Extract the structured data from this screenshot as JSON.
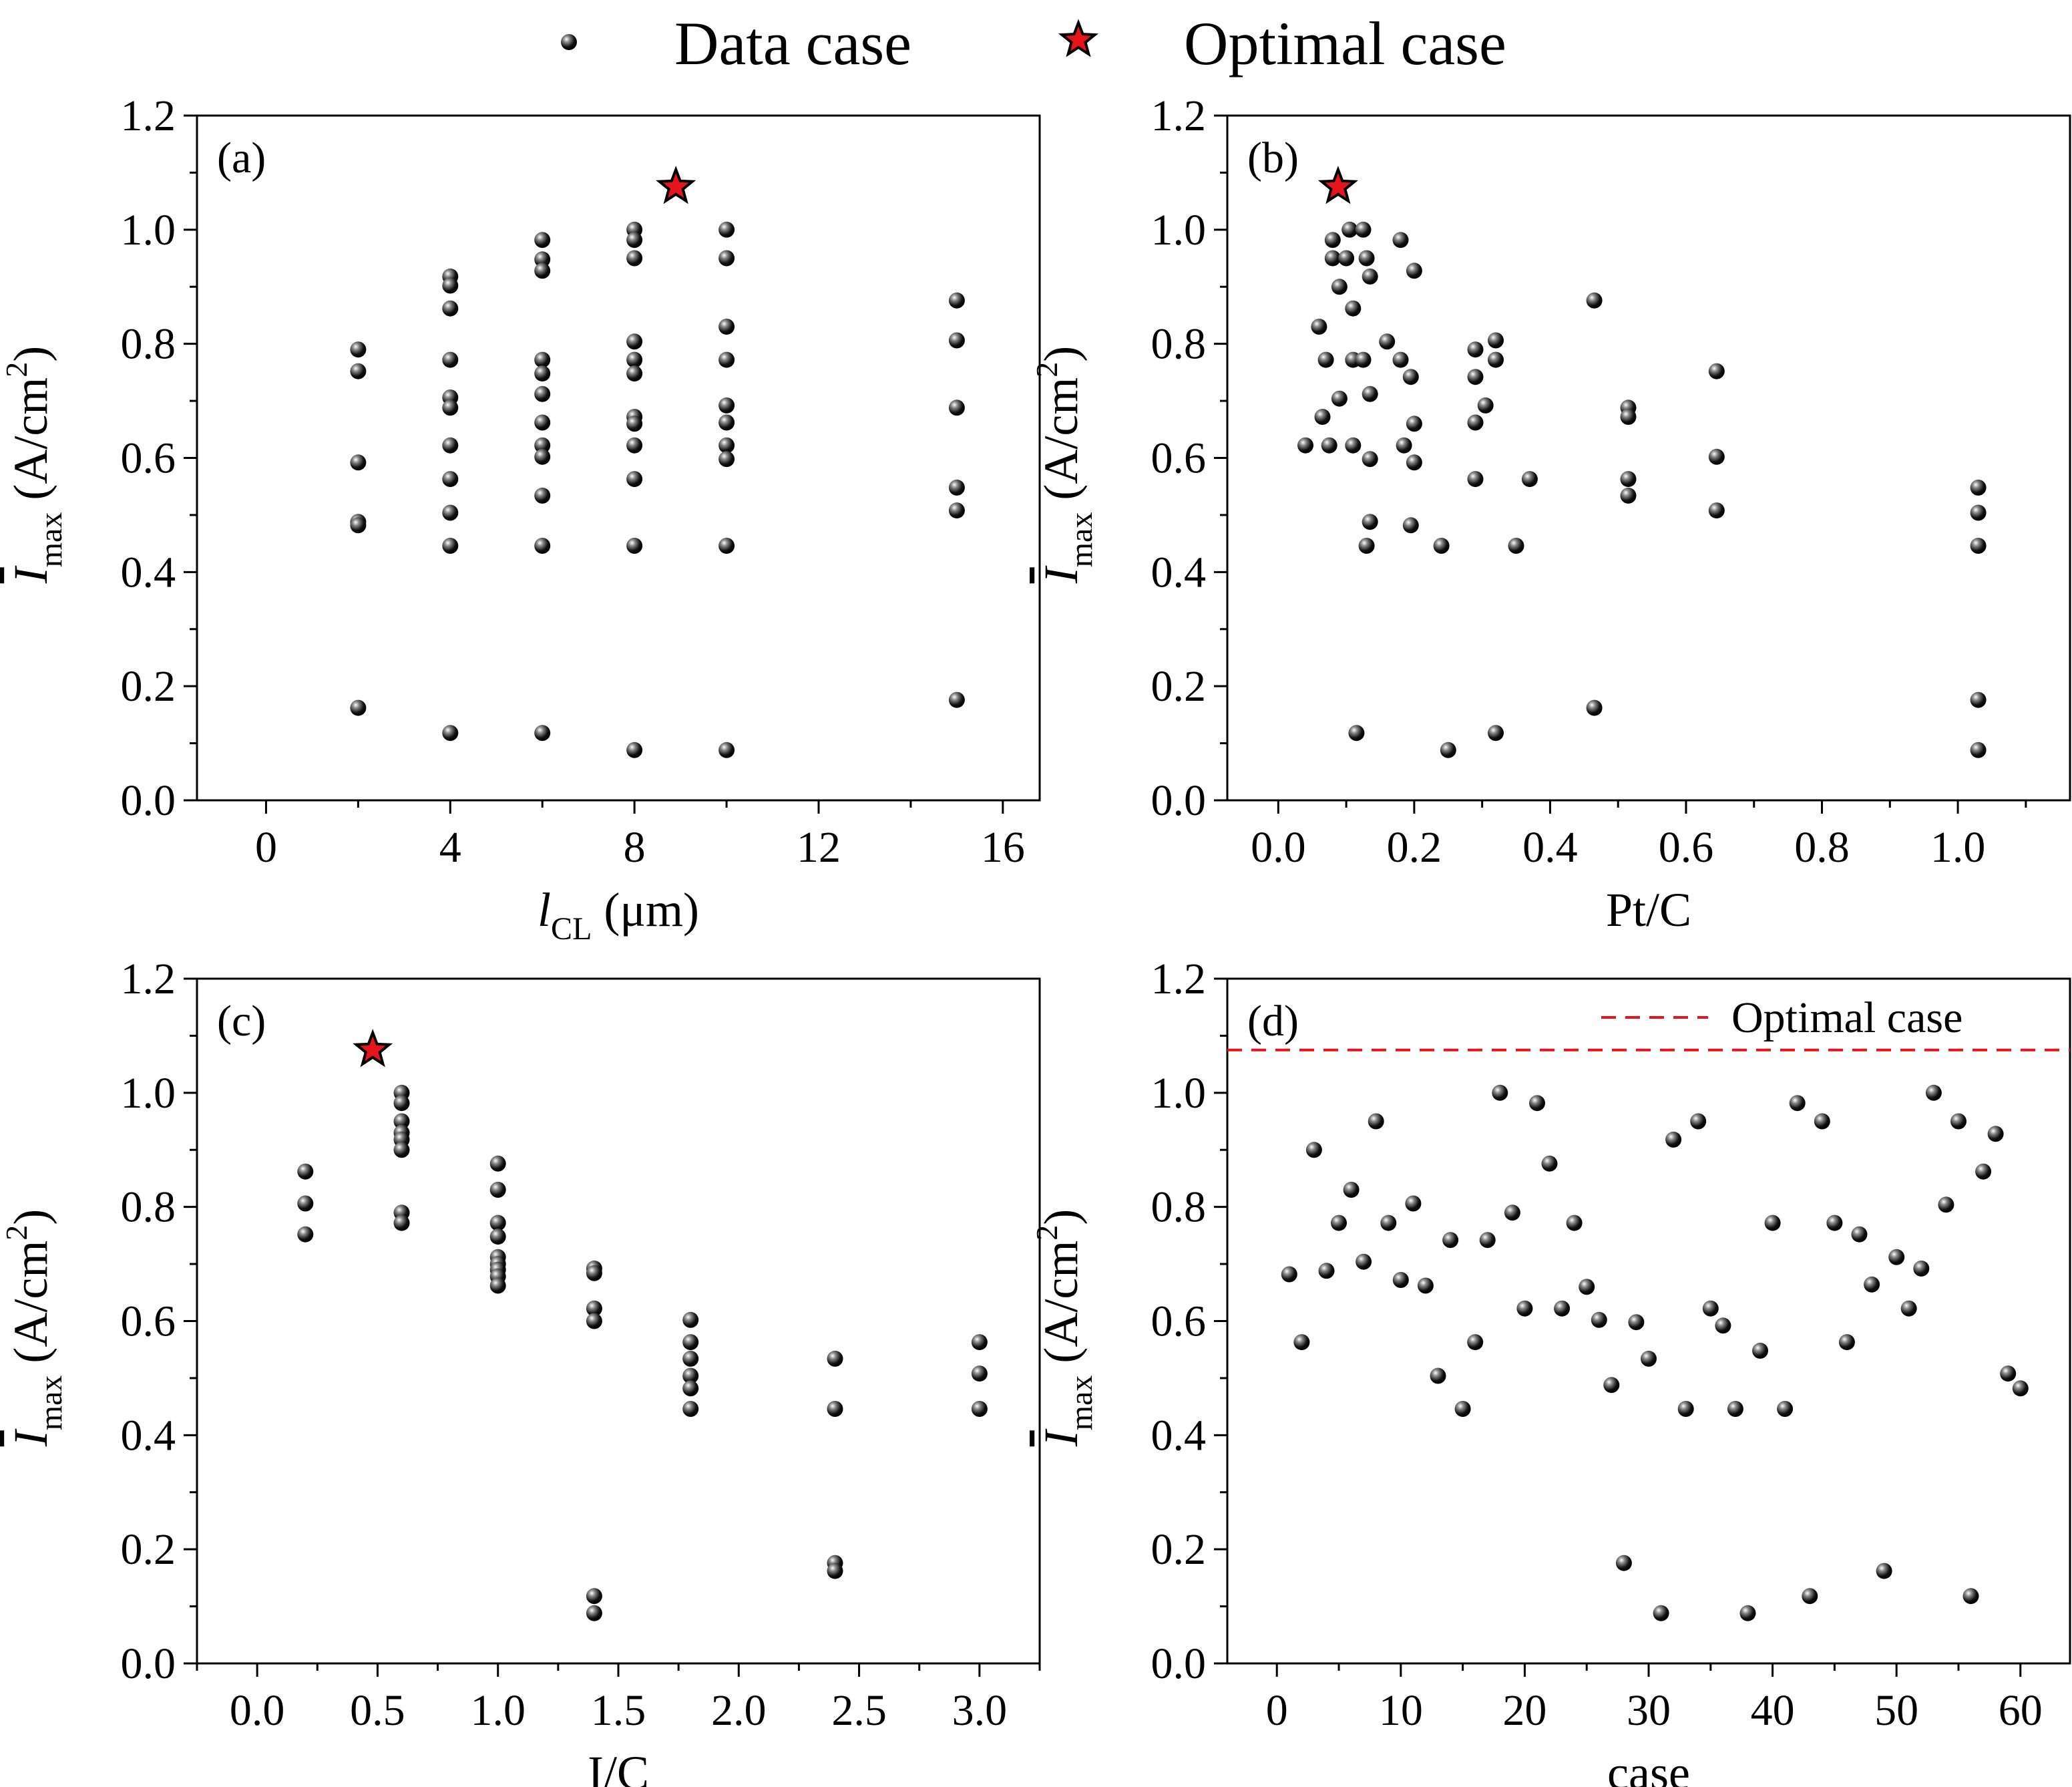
{
  "legend": {
    "data_label": "Data case",
    "optimal_label": "Optimal case",
    "optimal_color": "#e8141c"
  },
  "marker_color": "#111111",
  "chart_data": [
    {
      "id": "a",
      "type": "scatter",
      "panel_label": "(a)",
      "xlabel": "l",
      "xlabel_sub": "CL",
      "xlabel_unit": " (μm)",
      "ylabel": "I",
      "ylabel_sub": "max",
      "ylabel_unit": " (A/cm",
      "ylabel_sup": "2",
      "ylabel_close": ")",
      "xlim": [
        -1.5,
        16.8
      ],
      "ylim": [
        0,
        1.2
      ],
      "xticks": [
        0,
        4,
        8,
        12,
        16
      ],
      "xtick_labels": [
        "0",
        "4",
        "8",
        "12",
        "16"
      ],
      "yticks": [
        0,
        0.2,
        0.4,
        0.6,
        0.8,
        1.0,
        1.2
      ],
      "ytick_labels": [
        "0.0",
        "0.2",
        "0.4",
        "0.6",
        "0.8",
        "1.0",
        "1.2"
      ],
      "minor_x": 2,
      "minor_y": 0.1,
      "points": [
        [
          2,
          0.79
        ],
        [
          2,
          0.752
        ],
        [
          2,
          0.592
        ],
        [
          2,
          0.488
        ],
        [
          2,
          0.482
        ],
        [
          2,
          0.162
        ],
        [
          4,
          0.918
        ],
        [
          4,
          0.902
        ],
        [
          4,
          0.862
        ],
        [
          4,
          0.772
        ],
        [
          4,
          0.706
        ],
        [
          4,
          0.688
        ],
        [
          4,
          0.622
        ],
        [
          4,
          0.563
        ],
        [
          4,
          0.504
        ],
        [
          4,
          0.446
        ],
        [
          4,
          0.118
        ],
        [
          6,
          0.982
        ],
        [
          6,
          0.948
        ],
        [
          6,
          0.928
        ],
        [
          6,
          0.772
        ],
        [
          6,
          0.748
        ],
        [
          6,
          0.712
        ],
        [
          6,
          0.662
        ],
        [
          6,
          0.622
        ],
        [
          6,
          0.602
        ],
        [
          6,
          0.534
        ],
        [
          6,
          0.446
        ],
        [
          6,
          0.118
        ],
        [
          8,
          1.0
        ],
        [
          8,
          0.982
        ],
        [
          8,
          0.95
        ],
        [
          8,
          0.804
        ],
        [
          8,
          0.772
        ],
        [
          8,
          0.748
        ],
        [
          8,
          0.672
        ],
        [
          8,
          0.66
        ],
        [
          8,
          0.622
        ],
        [
          8,
          0.563
        ],
        [
          8,
          0.446
        ],
        [
          8,
          0.088
        ],
        [
          10,
          1.0
        ],
        [
          10,
          0.95
        ],
        [
          10,
          0.83
        ],
        [
          10,
          0.772
        ],
        [
          10,
          0.692
        ],
        [
          10,
          0.662
        ],
        [
          10,
          0.622
        ],
        [
          10,
          0.598
        ],
        [
          10,
          0.446
        ],
        [
          10,
          0.088
        ],
        [
          15,
          0.876
        ],
        [
          15,
          0.806
        ],
        [
          15,
          0.688
        ],
        [
          15,
          0.548
        ],
        [
          15,
          0.508
        ],
        [
          15,
          0.176
        ]
      ],
      "optimal": [
        8.9,
        1.075
      ]
    },
    {
      "id": "b",
      "type": "scatter",
      "panel_label": "(b)",
      "xlabel": "Pt/C",
      "ylabel": "I",
      "ylabel_sub": "max",
      "ylabel_unit": " (A/cm",
      "ylabel_sup": "2",
      "ylabel_close": ")",
      "xlim": [
        -0.075,
        1.165
      ],
      "ylim": [
        0,
        1.2
      ],
      "xticks": [
        0,
        0.2,
        0.4,
        0.6,
        0.8,
        1.0
      ],
      "xtick_labels": [
        "0.0",
        "0.2",
        "0.4",
        "0.6",
        "0.8",
        "1.0"
      ],
      "yticks": [
        0,
        0.2,
        0.4,
        0.6,
        0.8,
        1.0,
        1.2
      ],
      "ytick_labels": [
        "0.0",
        "0.2",
        "0.4",
        "0.6",
        "0.8",
        "1.0",
        "1.2"
      ],
      "minor_x": 0.1,
      "minor_y": 0.1,
      "points": [
        [
          0.04,
          0.622
        ],
        [
          0.06,
          0.83
        ],
        [
          0.065,
          0.672
        ],
        [
          0.07,
          0.772
        ],
        [
          0.075,
          0.622
        ],
        [
          0.08,
          0.95
        ],
        [
          0.08,
          0.982
        ],
        [
          0.09,
          0.9
        ],
        [
          0.09,
          0.704
        ],
        [
          0.1,
          0.95
        ],
        [
          0.105,
          1.0
        ],
        [
          0.11,
          0.862
        ],
        [
          0.11,
          0.772
        ],
        [
          0.11,
          0.622
        ],
        [
          0.115,
          0.118
        ],
        [
          0.125,
          1.0
        ],
        [
          0.125,
          0.772
        ],
        [
          0.13,
          0.95
        ],
        [
          0.13,
          0.446
        ],
        [
          0.135,
          0.918
        ],
        [
          0.135,
          0.712
        ],
        [
          0.135,
          0.598
        ],
        [
          0.135,
          0.488
        ],
        [
          0.16,
          0.804
        ],
        [
          0.18,
          0.982
        ],
        [
          0.18,
          0.772
        ],
        [
          0.185,
          0.622
        ],
        [
          0.195,
          0.742
        ],
        [
          0.2,
          0.928
        ],
        [
          0.2,
          0.66
        ],
        [
          0.2,
          0.592
        ],
        [
          0.195,
          0.482
        ],
        [
          0.24,
          0.446
        ],
        [
          0.25,
          0.088
        ],
        [
          0.29,
          0.79
        ],
        [
          0.29,
          0.742
        ],
        [
          0.29,
          0.662
        ],
        [
          0.29,
          0.563
        ],
        [
          0.305,
          0.692
        ],
        [
          0.32,
          0.806
        ],
        [
          0.32,
          0.772
        ],
        [
          0.32,
          0.118
        ],
        [
          0.35,
          0.446
        ],
        [
          0.37,
          0.563
        ],
        [
          0.465,
          0.876
        ],
        [
          0.465,
          0.162
        ],
        [
          0.515,
          0.688
        ],
        [
          0.515,
          0.672
        ],
        [
          0.515,
          0.563
        ],
        [
          0.515,
          0.534
        ],
        [
          0.645,
          0.752
        ],
        [
          0.645,
          0.602
        ],
        [
          0.645,
          0.508
        ],
        [
          1.03,
          0.548
        ],
        [
          1.03,
          0.504
        ],
        [
          1.03,
          0.446
        ],
        [
          1.03,
          0.176
        ],
        [
          1.03,
          0.088
        ]
      ],
      "optimal": [
        0.088,
        1.075
      ]
    },
    {
      "id": "c",
      "type": "scatter",
      "panel_label": "(c)",
      "xlabel": "I/C",
      "ylabel": "I",
      "ylabel_sub": "max",
      "ylabel_unit": " (A/cm",
      "ylabel_sup": "2",
      "ylabel_close": ")",
      "xlim": [
        -0.25,
        3.25
      ],
      "ylim": [
        0,
        1.2
      ],
      "xticks": [
        0,
        0.5,
        1.0,
        1.5,
        2.0,
        2.5,
        3.0
      ],
      "xtick_labels": [
        "0.0",
        "0.5",
        "1.0",
        "1.5",
        "2.0",
        "2.5",
        "3.0"
      ],
      "yticks": [
        0,
        0.2,
        0.4,
        0.6,
        0.8,
        1.0,
        1.2
      ],
      "ytick_labels": [
        "0.0",
        "0.2",
        "0.4",
        "0.6",
        "0.8",
        "1.0",
        "1.2"
      ],
      "minor_x": 0.25,
      "minor_y": 0.1,
      "points": [
        [
          0.2,
          0.862
        ],
        [
          0.2,
          0.806
        ],
        [
          0.2,
          0.752
        ],
        [
          0.6,
          1.0
        ],
        [
          0.6,
          0.982
        ],
        [
          0.6,
          0.95
        ],
        [
          0.6,
          0.93
        ],
        [
          0.6,
          0.918
        ],
        [
          0.6,
          0.9
        ],
        [
          0.6,
          0.79
        ],
        [
          0.6,
          0.772
        ],
        [
          1.0,
          0.876
        ],
        [
          1.0,
          0.83
        ],
        [
          1.0,
          0.772
        ],
        [
          1.0,
          0.748
        ],
        [
          1.0,
          0.712
        ],
        [
          1.0,
          0.7
        ],
        [
          1.0,
          0.69
        ],
        [
          1.0,
          0.678
        ],
        [
          1.0,
          0.662
        ],
        [
          1.4,
          0.692
        ],
        [
          1.4,
          0.684
        ],
        [
          1.4,
          0.622
        ],
        [
          1.4,
          0.6
        ],
        [
          1.4,
          0.118
        ],
        [
          1.4,
          0.088
        ],
        [
          1.8,
          0.602
        ],
        [
          1.8,
          0.563
        ],
        [
          1.8,
          0.534
        ],
        [
          1.8,
          0.504
        ],
        [
          1.8,
          0.482
        ],
        [
          1.8,
          0.446
        ],
        [
          2.4,
          0.534
        ],
        [
          2.4,
          0.446
        ],
        [
          2.4,
          0.176
        ],
        [
          2.4,
          0.162
        ],
        [
          3.0,
          0.563
        ],
        [
          3.0,
          0.508
        ],
        [
          3.0,
          0.446
        ]
      ],
      "optimal": [
        0.48,
        1.075
      ]
    },
    {
      "id": "d",
      "type": "scatter",
      "panel_label": "(d)",
      "xlabel": "case",
      "ylabel": "I",
      "ylabel_sub": "max",
      "ylabel_unit": " (A/cm",
      "ylabel_sup": "2",
      "ylabel_close": ")",
      "xlim": [
        -4,
        64
      ],
      "ylim": [
        0,
        1.2
      ],
      "xticks": [
        0,
        10,
        20,
        30,
        40,
        50,
        60
      ],
      "xtick_labels": [
        "0",
        "10",
        "20",
        "30",
        "40",
        "50",
        "60"
      ],
      "yticks": [
        0,
        0.2,
        0.4,
        0.6,
        0.8,
        1.0,
        1.2
      ],
      "ytick_labels": [
        "0.0",
        "0.2",
        "0.4",
        "0.6",
        "0.8",
        "1.0",
        "1.2"
      ],
      "minor_x": 5,
      "minor_y": 0.1,
      "reference_line": {
        "y": 1.075,
        "label": "Optimal case"
      },
      "points": [
        [
          1,
          0.682
        ],
        [
          2,
          0.563
        ],
        [
          3,
          0.9
        ],
        [
          4,
          0.688
        ],
        [
          5,
          0.772
        ],
        [
          6,
          0.83
        ],
        [
          7,
          0.704
        ],
        [
          8,
          0.95
        ],
        [
          9,
          0.772
        ],
        [
          10,
          0.672
        ],
        [
          11,
          0.806
        ],
        [
          12,
          0.662
        ],
        [
          13,
          0.504
        ],
        [
          14,
          0.742
        ],
        [
          15,
          0.446
        ],
        [
          16,
          0.563
        ],
        [
          17,
          0.742
        ],
        [
          18,
          1.0
        ],
        [
          19,
          0.79
        ],
        [
          20,
          0.622
        ],
        [
          21,
          0.982
        ],
        [
          22,
          0.876
        ],
        [
          23,
          0.622
        ],
        [
          24,
          0.772
        ],
        [
          25,
          0.66
        ],
        [
          26,
          0.602
        ],
        [
          27,
          0.488
        ],
        [
          28,
          0.176
        ],
        [
          29,
          0.598
        ],
        [
          30,
          0.534
        ],
        [
          31,
          0.088
        ],
        [
          32,
          0.918
        ],
        [
          33,
          0.446
        ],
        [
          34,
          0.95
        ],
        [
          35,
          0.622
        ],
        [
          36,
          0.592
        ],
        [
          37,
          0.446
        ],
        [
          38,
          0.088
        ],
        [
          39,
          0.548
        ],
        [
          40,
          0.772
        ],
        [
          41,
          0.446
        ],
        [
          42,
          0.982
        ],
        [
          43,
          0.118
        ],
        [
          44,
          0.95
        ],
        [
          45,
          0.772
        ],
        [
          46,
          0.563
        ],
        [
          47,
          0.752
        ],
        [
          48,
          0.664
        ],
        [
          49,
          0.162
        ],
        [
          50,
          0.712
        ],
        [
          51,
          0.622
        ],
        [
          52,
          0.692
        ],
        [
          53,
          1.0
        ],
        [
          54,
          0.804
        ],
        [
          55,
          0.95
        ],
        [
          56,
          0.118
        ],
        [
          57,
          0.862
        ],
        [
          58,
          0.928
        ],
        [
          59,
          0.508
        ],
        [
          60,
          0.482
        ]
      ]
    }
  ]
}
